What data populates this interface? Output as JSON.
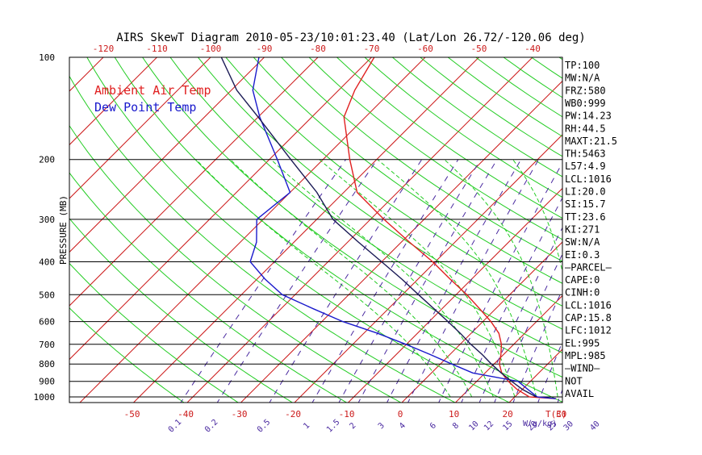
{
  "chart_data": {
    "type": "line",
    "title": "AIRS SkewT Diagram 2010-05-23/10:01:23.40 (Lat/Lon 26.72/-120.06 deg)",
    "ylabel": "PRESSURE (MB)",
    "xlabel": "T(C)",
    "mixing_ratio_label": "W(g/kg)",
    "top_temp_ticks": [
      "-120",
      "-110",
      "-100",
      "-90",
      "-80",
      "-70",
      "-60",
      "-50",
      "-40"
    ],
    "bottom_temp_ticks": [
      "-50",
      "-40",
      "-30",
      "-20",
      "-10",
      "0",
      "10",
      "20",
      "30"
    ],
    "mixing_ratio_ticks": [
      "0.1",
      "0.2",
      "0.5",
      "1",
      "1.5",
      "2",
      "3",
      "4",
      "6",
      "8",
      "10",
      "12",
      "15",
      "20",
      "25",
      "30",
      "40"
    ],
    "pressure_ticks": [
      "100",
      "200",
      "300",
      "400",
      "500",
      "600",
      "700",
      "800",
      "900",
      "1000"
    ],
    "legend": [
      {
        "name": "Ambient Air Temp",
        "color": "#e02020"
      },
      {
        "name": "Dew Point Temp",
        "color": "#1a1acc"
      }
    ],
    "series": [
      {
        "name": "Ambient Air Temp",
        "color": "#e02020",
        "points": [
          {
            "p": 1012,
            "t": 28.0
          },
          {
            "p": 1000,
            "t": 22.7
          },
          {
            "p": 950,
            "t": 19.0
          },
          {
            "p": 900,
            "t": 15.9
          },
          {
            "p": 850,
            "t": 13.1
          },
          {
            "p": 800,
            "t": 11.0
          },
          {
            "p": 750,
            "t": 9.5
          },
          {
            "p": 700,
            "t": 7.7
          },
          {
            "p": 650,
            "t": 5.2
          },
          {
            "p": 600,
            "t": 1.5
          },
          {
            "p": 550,
            "t": -3.0
          },
          {
            "p": 500,
            "t": -8.0
          },
          {
            "p": 450,
            "t": -14.0
          },
          {
            "p": 400,
            "t": -20.5
          },
          {
            "p": 350,
            "t": -28.5
          },
          {
            "p": 300,
            "t": -37.5
          },
          {
            "p": 250,
            "t": -47.5
          },
          {
            "p": 200,
            "t": -55.0
          },
          {
            "p": 150,
            "t": -64.0
          },
          {
            "p": 125,
            "t": -67.0
          },
          {
            "p": 100,
            "t": -69.5
          }
        ]
      },
      {
        "name": "Dew Point Temp",
        "color": "#1a1acc",
        "points": [
          {
            "p": 1012,
            "t": 28.0
          },
          {
            "p": 1000,
            "t": 24.2
          },
          {
            "p": 950,
            "t": 21.0
          },
          {
            "p": 900,
            "t": 17.7
          },
          {
            "p": 850,
            "t": 7.7
          },
          {
            "p": 800,
            "t": 2.1
          },
          {
            "p": 750,
            "t": -3.7
          },
          {
            "p": 700,
            "t": -10.1
          },
          {
            "p": 650,
            "t": -17.4
          },
          {
            "p": 600,
            "t": -26.1
          },
          {
            "p": 550,
            "t": -34.0
          },
          {
            "p": 500,
            "t": -42.4
          },
          {
            "p": 450,
            "t": -48.5
          },
          {
            "p": 400,
            "t": -54.5
          },
          {
            "p": 350,
            "t": -57.0
          },
          {
            "p": 300,
            "t": -61.2
          },
          {
            "p": 250,
            "t": -60.0
          },
          {
            "p": 200,
            "t": -68.5
          },
          {
            "p": 150,
            "t": -79.7
          },
          {
            "p": 125,
            "t": -86.0
          },
          {
            "p": 100,
            "t": -91.0
          }
        ]
      },
      {
        "name": "parcel",
        "color": "#1a1a55",
        "points": [
          {
            "p": 1000,
            "t": 24.0
          },
          {
            "p": 950,
            "t": 20.0
          },
          {
            "p": 900,
            "t": 16.5
          },
          {
            "p": 850,
            "t": 13.0
          },
          {
            "p": 800,
            "t": 9.5
          },
          {
            "p": 750,
            "t": 6.0
          },
          {
            "p": 700,
            "t": 2.0
          },
          {
            "p": 650,
            "t": -2.0
          },
          {
            "p": 600,
            "t": -6.5
          },
          {
            "p": 550,
            "t": -11.5
          },
          {
            "p": 500,
            "t": -17.0
          },
          {
            "p": 450,
            "t": -23.0
          },
          {
            "p": 400,
            "t": -30.0
          },
          {
            "p": 350,
            "t": -38.0
          },
          {
            "p": 300,
            "t": -47.0
          },
          {
            "p": 250,
            "t": -55.0
          },
          {
            "p": 200,
            "t": -66.0
          },
          {
            "p": 150,
            "t": -80.0
          },
          {
            "p": 125,
            "t": -89.0
          },
          {
            "p": 100,
            "t": -98.0
          }
        ]
      }
    ],
    "side_panel": [
      "TP:100",
      "MW:N/A",
      "FRZ:580",
      "WB0:999",
      "PW:14.23",
      "RH:44.5",
      "MAXT:21.5",
      "TH:5463",
      "L57:4.9",
      "LCL:1016",
      "LI:20.0",
      "SI:15.7",
      "TT:23.6",
      "KI:271",
      "SW:N/A",
      "EI:0.3",
      "—PARCEL—",
      "CAPE:0",
      "CINH:0",
      "LCL:1016",
      "CAP:15.8",
      "LFC:1012",
      "EL:995",
      "MPL:985",
      "—WIND—",
      "NOT",
      "AVAIL"
    ],
    "grid": true,
    "colors": {
      "isotherm": "#cc1a1a",
      "dry_adiabat": "#22cc22",
      "moist_adiabat": "#22cc22",
      "mixing_ratio": "#4a2aa0",
      "isobar": "#000000",
      "text": "#000000"
    }
  }
}
